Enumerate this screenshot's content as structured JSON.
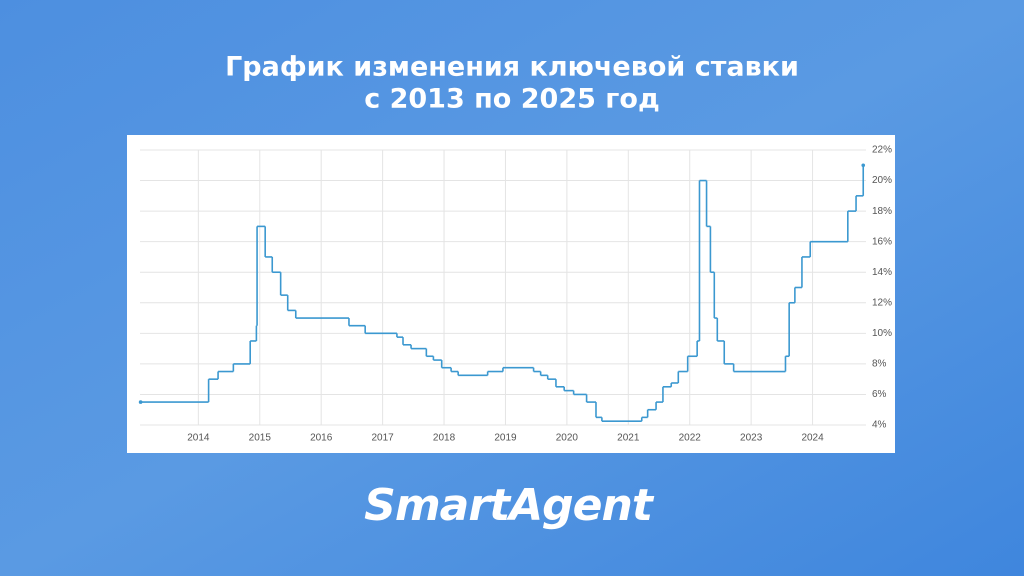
{
  "chart_data": {
    "type": "step",
    "title": [
      "График изменения ключевой ставки",
      "с 2013 по 2025 год"
    ],
    "x": [
      2013.06,
      2014.167,
      2014.321,
      2014.57,
      2014.844,
      2014.945,
      2014.956,
      2015.088,
      2015.203,
      2015.34,
      2015.455,
      2015.586,
      2016.452,
      2016.716,
      2017.233,
      2017.332,
      2017.463,
      2017.712,
      2017.827,
      2017.962,
      2018.115,
      2018.23,
      2018.71,
      2018.959,
      2019.458,
      2019.573,
      2019.688,
      2019.822,
      2019.956,
      2020.11,
      2020.321,
      2020.474,
      2020.57,
      2021.219,
      2021.315,
      2021.452,
      2021.564,
      2021.699,
      2021.814,
      2021.967,
      2022.121,
      2022.159,
      2022.274,
      2022.337,
      2022.4,
      2022.449,
      2022.562,
      2022.715,
      2023.559,
      2023.619,
      2023.712,
      2023.827,
      2023.962,
      2024.574,
      2024.708,
      2024.825
    ],
    "series": [
      {
        "color": "#3b98d0",
        "values": [
          5.5,
          7,
          7.5,
          8,
          9.5,
          10.5,
          17,
          15,
          14,
          12.5,
          11.5,
          11,
          10.5,
          10,
          9.75,
          9.25,
          9,
          8.5,
          8.25,
          7.75,
          7.5,
          7.25,
          7.5,
          7.75,
          7.5,
          7.25,
          7,
          6.5,
          6.25,
          6,
          5.5,
          4.5,
          4.25,
          4.5,
          5,
          5.5,
          6.5,
          6.75,
          7.5,
          8.5,
          9.5,
          20,
          17,
          14,
          11,
          9.5,
          8,
          7.5,
          8.5,
          12,
          13,
          15,
          16,
          18,
          19,
          21
        ]
      }
    ],
    "xlim": [
      2013.05,
      2024.87
    ],
    "xticks": [
      2014,
      2015,
      2016,
      2017,
      2018,
      2019,
      2020,
      2021,
      2022,
      2023,
      2024
    ],
    "ylim": [
      4,
      22
    ],
    "yticks": [
      {
        "value": 4,
        "label": "4%"
      },
      {
        "value": 6,
        "label": "6%"
      },
      {
        "value": 8,
        "label": "8%"
      },
      {
        "value": 10,
        "label": "10%"
      },
      {
        "value": 12,
        "label": "12%"
      },
      {
        "value": 14,
        "label": "14%"
      },
      {
        "value": 16,
        "label": "16%"
      },
      {
        "value": 18,
        "label": "18%"
      },
      {
        "value": 20,
        "label": "20%"
      },
      {
        "value": 22,
        "label": "22%"
      }
    ],
    "grid": true
  },
  "brand": "SmartAgent"
}
